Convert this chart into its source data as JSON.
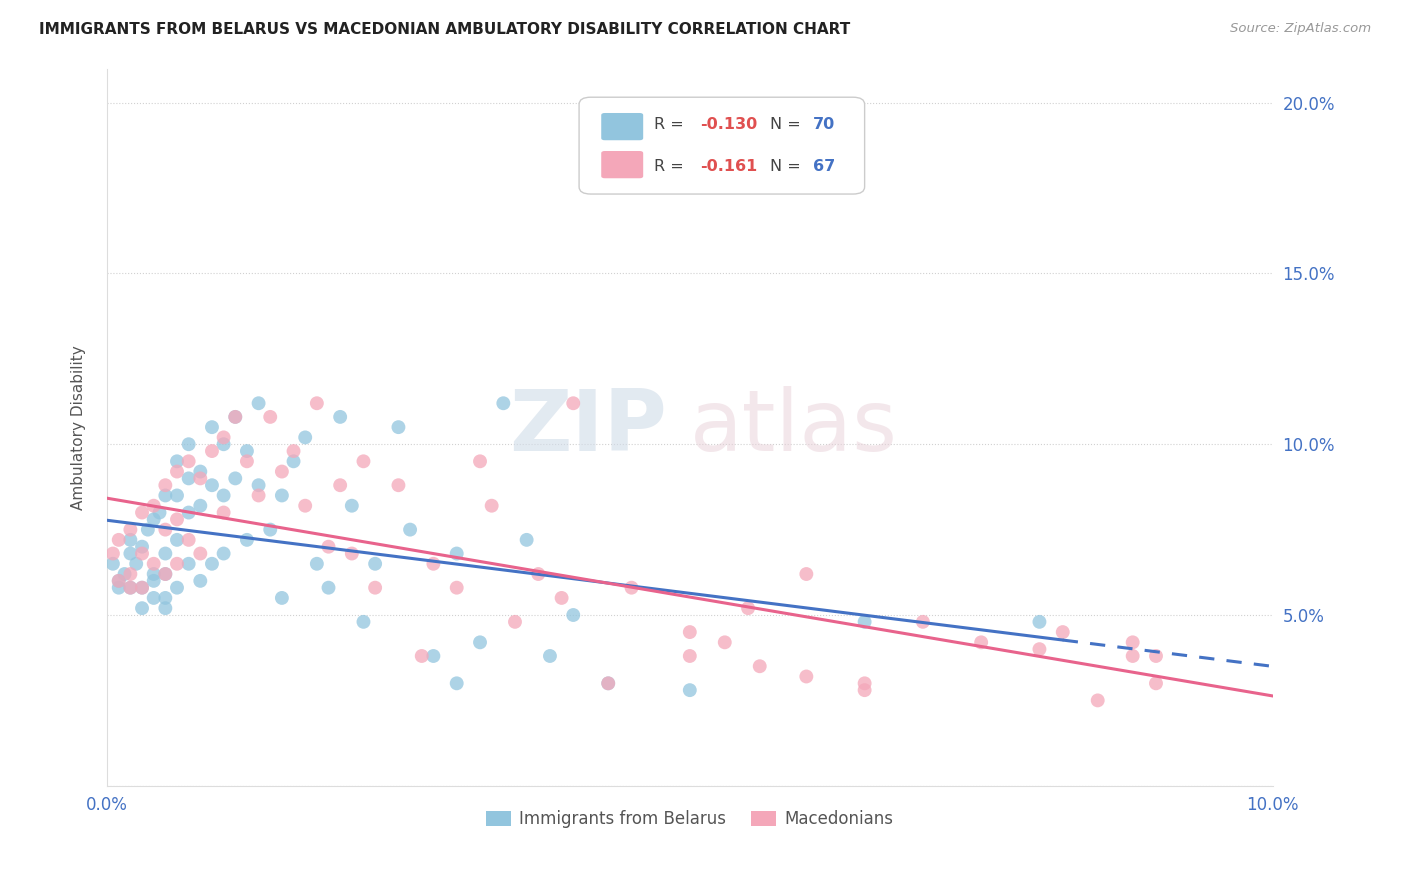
{
  "title": "IMMIGRANTS FROM BELARUS VS MACEDONIAN AMBULATORY DISABILITY CORRELATION CHART",
  "source": "Source: ZipAtlas.com",
  "ylabel": "Ambulatory Disability",
  "xlim": [
    0.0,
    0.1
  ],
  "ylim": [
    0.0,
    0.21
  ],
  "xticks": [
    0.0,
    0.02,
    0.04,
    0.06,
    0.08,
    0.1
  ],
  "yticks": [
    0.0,
    0.05,
    0.1,
    0.15,
    0.2
  ],
  "ytick_labels_right": [
    "",
    "5.0%",
    "10.0%",
    "15.0%",
    "20.0%"
  ],
  "color_blue": "#92C5DE",
  "color_pink": "#F4A7B9",
  "line_blue": "#4472C4",
  "line_pink": "#E8638C",
  "watermark_zip": "ZIP",
  "watermark_atlas": "atlas",
  "blue_x": [
    0.0005,
    0.001,
    0.001,
    0.0015,
    0.002,
    0.002,
    0.002,
    0.0025,
    0.003,
    0.003,
    0.003,
    0.0035,
    0.004,
    0.004,
    0.004,
    0.004,
    0.0045,
    0.005,
    0.005,
    0.005,
    0.005,
    0.005,
    0.006,
    0.006,
    0.006,
    0.006,
    0.007,
    0.007,
    0.007,
    0.007,
    0.008,
    0.008,
    0.008,
    0.009,
    0.009,
    0.009,
    0.01,
    0.01,
    0.01,
    0.011,
    0.011,
    0.012,
    0.012,
    0.013,
    0.013,
    0.014,
    0.015,
    0.015,
    0.016,
    0.017,
    0.018,
    0.019,
    0.02,
    0.021,
    0.022,
    0.023,
    0.025,
    0.026,
    0.028,
    0.03,
    0.03,
    0.032,
    0.034,
    0.036,
    0.038,
    0.04,
    0.043,
    0.05,
    0.065,
    0.08
  ],
  "blue_y": [
    0.065,
    0.06,
    0.058,
    0.062,
    0.068,
    0.058,
    0.072,
    0.065,
    0.07,
    0.058,
    0.052,
    0.075,
    0.078,
    0.062,
    0.06,
    0.055,
    0.08,
    0.085,
    0.068,
    0.062,
    0.055,
    0.052,
    0.095,
    0.085,
    0.072,
    0.058,
    0.1,
    0.09,
    0.08,
    0.065,
    0.092,
    0.082,
    0.06,
    0.105,
    0.088,
    0.065,
    0.1,
    0.085,
    0.068,
    0.108,
    0.09,
    0.098,
    0.072,
    0.112,
    0.088,
    0.075,
    0.085,
    0.055,
    0.095,
    0.102,
    0.065,
    0.058,
    0.108,
    0.082,
    0.048,
    0.065,
    0.105,
    0.075,
    0.038,
    0.03,
    0.068,
    0.042,
    0.112,
    0.072,
    0.038,
    0.05,
    0.03,
    0.028,
    0.048,
    0.048
  ],
  "pink_x": [
    0.0005,
    0.001,
    0.001,
    0.002,
    0.002,
    0.002,
    0.003,
    0.003,
    0.003,
    0.004,
    0.004,
    0.005,
    0.005,
    0.005,
    0.006,
    0.006,
    0.006,
    0.007,
    0.007,
    0.008,
    0.008,
    0.009,
    0.01,
    0.01,
    0.011,
    0.012,
    0.013,
    0.014,
    0.015,
    0.016,
    0.017,
    0.018,
    0.019,
    0.02,
    0.021,
    0.022,
    0.023,
    0.025,
    0.027,
    0.028,
    0.03,
    0.032,
    0.033,
    0.035,
    0.037,
    0.039,
    0.04,
    0.043,
    0.045,
    0.05,
    0.053,
    0.056,
    0.06,
    0.065,
    0.07,
    0.075,
    0.08,
    0.085,
    0.088,
    0.09,
    0.082,
    0.05,
    0.055,
    0.06,
    0.065,
    0.088,
    0.09
  ],
  "pink_y": [
    0.068,
    0.072,
    0.06,
    0.075,
    0.062,
    0.058,
    0.08,
    0.068,
    0.058,
    0.082,
    0.065,
    0.088,
    0.075,
    0.062,
    0.092,
    0.078,
    0.065,
    0.095,
    0.072,
    0.09,
    0.068,
    0.098,
    0.102,
    0.08,
    0.108,
    0.095,
    0.085,
    0.108,
    0.092,
    0.098,
    0.082,
    0.112,
    0.07,
    0.088,
    0.068,
    0.095,
    0.058,
    0.088,
    0.038,
    0.065,
    0.058,
    0.095,
    0.082,
    0.048,
    0.062,
    0.055,
    0.112,
    0.03,
    0.058,
    0.045,
    0.042,
    0.035,
    0.062,
    0.03,
    0.048,
    0.042,
    0.04,
    0.025,
    0.038,
    0.03,
    0.045,
    0.038,
    0.052,
    0.032,
    0.028,
    0.042,
    0.038
  ]
}
